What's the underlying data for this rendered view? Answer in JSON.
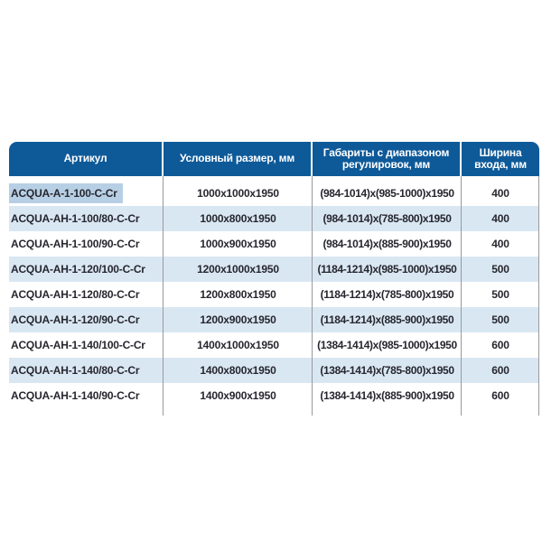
{
  "table": {
    "headers": [
      {
        "label": "Артикул"
      },
      {
        "label": "Условный размер, мм"
      },
      {
        "label": "Габариты с диапазоном регулировок, мм"
      },
      {
        "label": "Ширина входа, мм"
      }
    ],
    "rows": [
      {
        "article": "ACQUA-A-1-100-C-Cr",
        "size": "1000x1000x1950",
        "range": "(984-1014)x(985-1000)x1950",
        "entry_width": "400",
        "selected": true
      },
      {
        "article": "ACQUA-AH-1-100/80-C-Cr",
        "size": "1000x800x1950",
        "range": "(984-1014)x(785-800)x1950",
        "entry_width": "400"
      },
      {
        "article": "ACQUA-AH-1-100/90-C-Cr",
        "size": "1000x900x1950",
        "range": "(984-1014)x(885-900)x1950",
        "entry_width": "400"
      },
      {
        "article": "ACQUA-AH-1-120/100-C-Cr",
        "size": "1200x1000x1950",
        "range": "(1184-1214)x(985-1000)x1950",
        "entry_width": "500"
      },
      {
        "article": "ACQUA-AH-1-120/80-C-Cr",
        "size": "1200x800x1950",
        "range": "(1184-1214)x(785-800)x1950",
        "entry_width": "500"
      },
      {
        "article": "ACQUA-AH-1-120/90-C-Cr",
        "size": "1200x900x1950",
        "range": "(1184-1214)x(885-900)x1950",
        "entry_width": "500"
      },
      {
        "article": "ACQUA-AH-1-140/100-C-Cr",
        "size": "1400x1000x1950",
        "range": "(1384-1414)x(985-1000)x1950",
        "entry_width": "600"
      },
      {
        "article": "ACQUA-AH-1-140/80-C-Cr",
        "size": "1400x800x1950",
        "range": "(1384-1414)x(785-800)x1950",
        "entry_width": "600"
      },
      {
        "article": "ACQUA-AH-1-140/90-C-Cr",
        "size": "1400x900x1950",
        "range": "(1384-1414)x(885-900)x1950",
        "entry_width": "600"
      }
    ]
  },
  "colors": {
    "header_bg": "#0e5a99",
    "header_text": "#ffffff",
    "row_alt_bg": "#d9e7f3",
    "selection_highlight_bg": "#b7cfe4",
    "body_text": "#26262e",
    "divider_line": "#97999c",
    "page_bg": "#ffffff"
  }
}
